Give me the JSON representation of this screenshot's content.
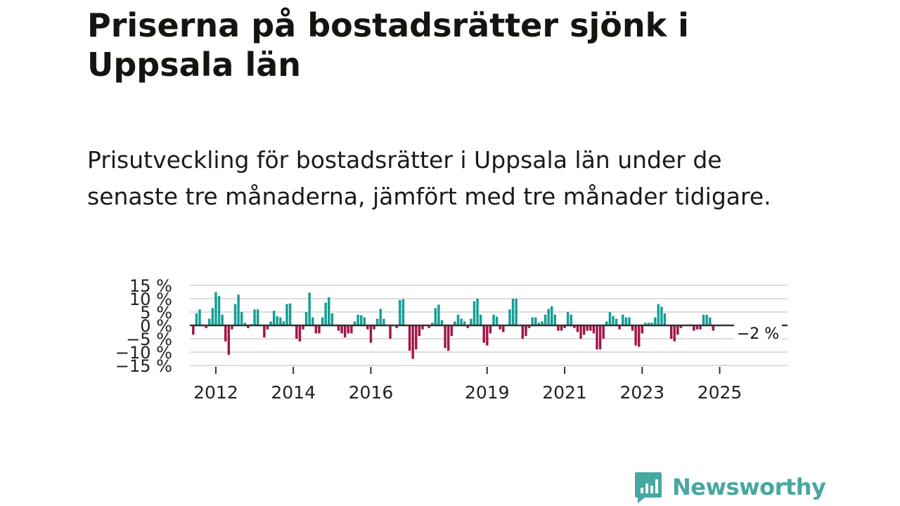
{
  "title": "Priserna på bostadsrätter sjönk i Uppsala län",
  "subtitle": "Prisutveckling för bostadsrätter i Uppsala län under de senaste tre månaderna, jämfört med tre månader tidigare.",
  "brand": {
    "name": "Newsworthy",
    "color": "#46a8a0"
  },
  "colors": {
    "positive": "#139f96",
    "negative": "#a31448",
    "zero_line": "#333333",
    "grid": "#dddddd"
  },
  "chart_data": {
    "type": "bar",
    "title": "Prisutveckling för bostadsrätter i Uppsala län",
    "xlabel": "",
    "ylabel": "",
    "ylim": [
      -15,
      15
    ],
    "yticks": [
      15,
      10,
      5,
      0,
      -5,
      -10,
      -15
    ],
    "ytick_labels": [
      "15 %",
      "10 %",
      "5 %",
      "0 %",
      "−5 %",
      "−10 %",
      "−15 %"
    ],
    "x_start": 2011.417,
    "months_per_bar": 1,
    "x_range": [
      2011.33,
      2026.75
    ],
    "xtick_years": [
      2012,
      2014,
      2016,
      2019,
      2021,
      2023,
      2025
    ],
    "end_label": "−2 %",
    "grid": true,
    "values": [
      -3.5,
      4.5,
      6,
      0,
      -1,
      2.5,
      6.5,
      12.5,
      11,
      4,
      -6,
      -11,
      -1.5,
      8,
      11.5,
      5,
      1,
      -1,
      0.5,
      6,
      6,
      0,
      -4.5,
      -1.5,
      1.5,
      5.5,
      3.5,
      3,
      1.5,
      8,
      8.2,
      0,
      -5,
      -6,
      -1.5,
      5,
      12.3,
      3,
      -3,
      -3,
      3,
      8.5,
      10.5,
      4.5,
      0,
      -2,
      -3,
      -4.5,
      -3,
      -3,
      1.5,
      4,
      3.8,
      3,
      -1.5,
      -6.5,
      -1.5,
      2.5,
      6.2,
      2.5,
      0,
      -5,
      0,
      -1,
      9.5,
      9.8,
      0,
      -9.5,
      -12.5,
      -9,
      -4,
      -1.5,
      0,
      -1,
      1,
      6.5,
      7.8,
      2,
      -8.5,
      -9.5,
      -4,
      1.5,
      4,
      2.5,
      1.5,
      -1,
      2.5,
      9,
      10,
      4,
      -6.5,
      -7.5,
      -3,
      4,
      3.3,
      -1.5,
      -2.5,
      0,
      6,
      10,
      10,
      0,
      -5,
      -4,
      -1,
      3,
      3,
      1,
      1.5,
      4,
      6.2,
      7.2,
      4,
      -2,
      -2,
      -1,
      5,
      4,
      -1,
      -2.5,
      -5,
      -3.5,
      -2,
      -2,
      -3,
      -9,
      -9,
      -5,
      1.5,
      5,
      3.5,
      2.5,
      -1.5,
      4,
      3,
      3,
      -2,
      -7.5,
      -8,
      -3,
      1,
      1,
      1,
      3,
      8,
      7,
      4.5,
      0,
      -5,
      -6,
      -3.5,
      -1,
      0,
      0,
      0,
      -2,
      -1.5,
      -1.5,
      4,
      4,
      3,
      -2
    ]
  }
}
